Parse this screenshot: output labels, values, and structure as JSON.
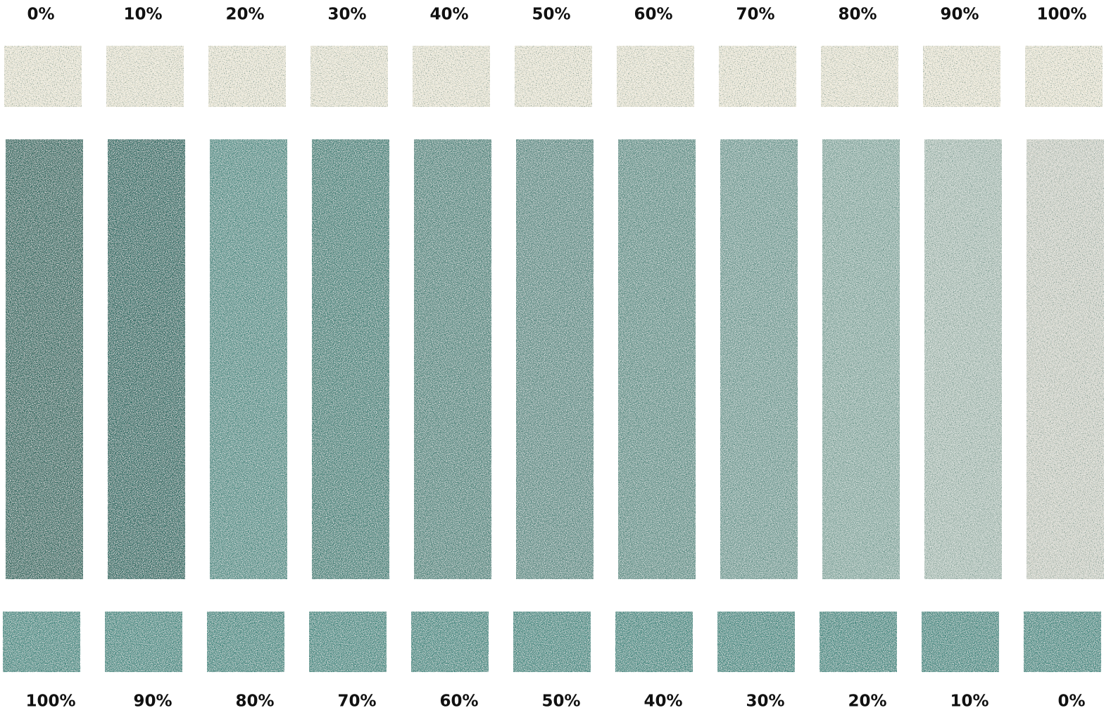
{
  "columns": [
    {
      "top": "0%",
      "bottom": "100%",
      "mix_color": "#3e6c64"
    },
    {
      "top": "10%",
      "bottom": "90%",
      "mix_color": "#386d66"
    },
    {
      "top": "20%",
      "bottom": "80%",
      "mix_color": "#5c948d"
    },
    {
      "top": "30%",
      "bottom": "70%",
      "mix_color": "#4f877f"
    },
    {
      "top": "40%",
      "bottom": "60%",
      "mix_color": "#5d8d85"
    },
    {
      "top": "50%",
      "bottom": "50%",
      "mix_color": "#67938c"
    },
    {
      "top": "60%",
      "bottom": "40%",
      "mix_color": "#6c9890"
    },
    {
      "top": "70%",
      "bottom": "30%",
      "mix_color": "#7ca39b"
    },
    {
      "top": "80%",
      "bottom": "20%",
      "mix_color": "#91b1a8"
    },
    {
      "top": "90%",
      "bottom": "10%",
      "mix_color": "#b3c4bb"
    },
    {
      "top": "100%",
      "bottom": "0%",
      "mix_color": "#d4d5cb"
    }
  ]
}
